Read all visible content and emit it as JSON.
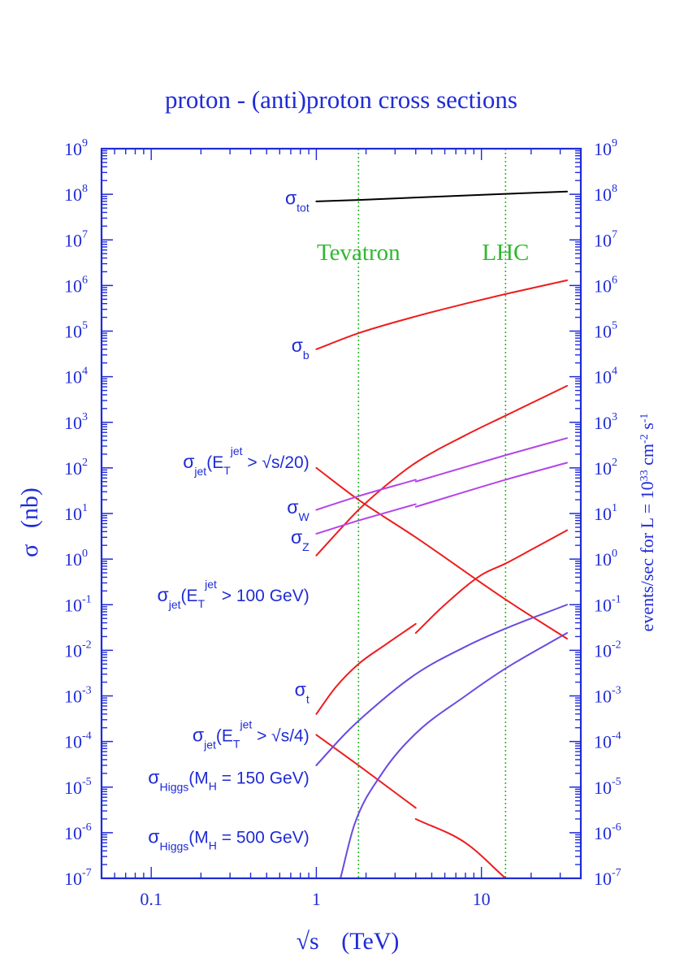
{
  "chart_data": {
    "type": "line",
    "title": "proton - (anti)proton cross sections",
    "xlabel": {
      "main": "√s",
      "unit": "(TeV)"
    },
    "ylabel": {
      "sigma": "σ",
      "unit": "(nb)"
    },
    "y2label": "events/sec  for  L = 10",
    "y2label_exp1": "33",
    "y2label_cm": " cm",
    "y2label_exp2": "-2",
    "y2label_s": " s",
    "y2label_exp3": "-1",
    "x_scale": "log",
    "y_scale": "log",
    "xlim": [
      0.05,
      40
    ],
    "ylim": [
      1e-07,
      1000000000.0
    ],
    "x_ticks": [
      {
        "value": 0.1,
        "label": "0.1"
      },
      {
        "value": 1,
        "label": "1"
      },
      {
        "value": 10,
        "label": "10"
      }
    ],
    "y_ticks": [
      {
        "exp": -7,
        "base": "10",
        "sup": "-7"
      },
      {
        "exp": -6,
        "base": "10",
        "sup": "-6"
      },
      {
        "exp": -5,
        "base": "10",
        "sup": "-5"
      },
      {
        "exp": -4,
        "base": "10",
        "sup": "-4"
      },
      {
        "exp": -3,
        "base": "10",
        "sup": "-3"
      },
      {
        "exp": -2,
        "base": "10",
        "sup": "-2"
      },
      {
        "exp": -1,
        "base": "10",
        "sup": "-1"
      },
      {
        "exp": 0,
        "base": "10",
        "sup": "0"
      },
      {
        "exp": 1,
        "base": "10",
        "sup": "1"
      },
      {
        "exp": 2,
        "base": "10",
        "sup": "2"
      },
      {
        "exp": 3,
        "base": "10",
        "sup": "3"
      },
      {
        "exp": 4,
        "base": "10",
        "sup": "4"
      },
      {
        "exp": 5,
        "base": "10",
        "sup": "5"
      },
      {
        "exp": 6,
        "base": "10",
        "sup": "6"
      },
      {
        "exp": 7,
        "base": "10",
        "sup": "7"
      },
      {
        "exp": 8,
        "base": "10",
        "sup": "8"
      },
      {
        "exp": 9,
        "base": "10",
        "sup": "9"
      }
    ],
    "vlines": [
      {
        "x": 1.8,
        "label": "Tevatron",
        "color": "#2fb82f"
      },
      {
        "x": 14,
        "label": "LHC",
        "color": "#2fb82f"
      }
    ],
    "colors": {
      "axis": "#1f2bd6",
      "text": "#1f2bd6",
      "tot": "#000000",
      "red": "#ee1c1c",
      "purple": "#b544e8",
      "violet": "#6a4ae0"
    },
    "series": [
      {
        "id": "sigma-tot",
        "color": "#000000",
        "x": [
          1,
          1.8,
          4,
          14,
          33
        ],
        "y": [
          70000000.0,
          75000000.0,
          85000000.0,
          102000000.0,
          115000000.0
        ]
      },
      {
        "id": "sigma-b",
        "color": "#ee1c1c",
        "x": [
          1,
          1.8,
          4,
          8,
          14,
          33
        ],
        "y": [
          40000.0,
          90000.0,
          210000.0,
          400000.0,
          650000.0,
          1300000.0
        ]
      },
      {
        "id": "sigma-jet-100gev",
        "color": "#ee1c1c",
        "x": [
          1,
          1.5,
          1.8,
          2.5,
          4,
          8,
          14,
          33
        ],
        "y": [
          1.2,
          6,
          12,
          35,
          130,
          520,
          1400,
          6300
        ]
      },
      {
        "id": "sigma-jet-s20",
        "color": "#ee1c1c",
        "x": [
          1,
          1.8,
          4,
          14,
          33
        ],
        "y": [
          100,
          20,
          3,
          0.13,
          0.018
        ]
      },
      {
        "id": "sigma-w-low",
        "color": "#b544e8",
        "x": [
          1,
          1.8,
          4
        ],
        "y": [
          12,
          24,
          55
        ]
      },
      {
        "id": "sigma-w-high",
        "color": "#b544e8",
        "x": [
          4,
          14,
          33
        ],
        "y": [
          50,
          190,
          450
        ]
      },
      {
        "id": "sigma-z-low",
        "color": "#b544e8",
        "x": [
          1,
          1.8,
          4
        ],
        "y": [
          3.6,
          7,
          16
        ]
      },
      {
        "id": "sigma-z-high",
        "color": "#b544e8",
        "x": [
          4,
          14,
          33
        ],
        "y": [
          14,
          55,
          130
        ]
      },
      {
        "id": "sigma-t-low",
        "color": "#ee1c1c",
        "x": [
          1,
          1.3,
          1.8,
          2.6,
          4
        ],
        "y": [
          0.0004,
          0.0015,
          0.005,
          0.013,
          0.038
        ]
      },
      {
        "id": "sigma-t-high",
        "color": "#ee1c1c",
        "x": [
          4,
          6,
          10,
          14,
          20,
          33
        ],
        "y": [
          0.024,
          0.1,
          0.45,
          0.8,
          1.6,
          4.3
        ]
      },
      {
        "id": "sigma-jet-s4-low",
        "color": "#ee1c1c",
        "x": [
          1,
          1.8,
          4
        ],
        "y": [
          0.00014,
          3e-05,
          3.5e-06
        ]
      },
      {
        "id": "sigma-jet-s4-high",
        "color": "#ee1c1c",
        "x": [
          4,
          8,
          14
        ],
        "y": [
          2e-06,
          6e-07,
          1e-07
        ]
      },
      {
        "id": "sigma-higgs-150",
        "color": "#6a4ae0",
        "x": [
          1,
          1.5,
          2,
          4,
          8,
          14,
          33
        ],
        "y": [
          3e-05,
          0.00015,
          0.0004,
          0.003,
          0.012,
          0.03,
          0.1
        ]
      },
      {
        "id": "sigma-higgs-500",
        "color": "#6a4ae0",
        "x": [
          1.4,
          1.7,
          2.5,
          4,
          8,
          14,
          33
        ],
        "y": [
          1e-07,
          1.5e-06,
          2e-05,
          0.00015,
          0.001,
          0.004,
          0.024
        ]
      }
    ],
    "labels": [
      {
        "id": "label-sigma-tot",
        "main": "σ",
        "sub": "tot",
        "x": 0.97,
        "y": 60000000.0
      },
      {
        "id": "label-sigma-b",
        "main": "σ",
        "sub": "b",
        "x": 0.97,
        "y": 35000.0
      },
      {
        "id": "label-sigma-jet-s20",
        "main": "σ",
        "sub": "jet",
        "rest": "(E",
        "sub2": "T",
        "sup2": "jet",
        "tail": " > √s/20)",
        "x": 0.97,
        "y": 100
      },
      {
        "id": "label-sigma-w",
        "main": "σ",
        "sub": "W",
        "x": 0.97,
        "y": 10
      },
      {
        "id": "label-sigma-z",
        "main": "σ",
        "sub": "Z",
        "x": 0.97,
        "y": 2.2
      },
      {
        "id": "label-sigma-jet-100",
        "main": "σ",
        "sub": "jet",
        "rest": "(E",
        "sub2": "T",
        "sup2": "jet",
        "tail": " > 100 GeV)",
        "x": 0.97,
        "y": 0.12
      },
      {
        "id": "label-sigma-t",
        "main": "σ",
        "sub": "t",
        "x": 0.97,
        "y": 0.001
      },
      {
        "id": "label-sigma-jet-s4",
        "main": "σ",
        "sub": "jet",
        "rest": "(E",
        "sub2": "T",
        "sup2": "jet",
        "tail": " > √s/4)",
        "x": 0.97,
        "y": 0.0001
      },
      {
        "id": "label-sigma-higgs-150",
        "main": "σ",
        "sub": "Higgs",
        "rest": "(M",
        "sub2": "H",
        "tail": " = 150 GeV)",
        "x": 0.97,
        "y": 1.2e-05
      },
      {
        "id": "label-sigma-higgs-500",
        "main": "σ",
        "sub": "Higgs",
        "rest": "(M",
        "sub2": "H",
        "tail": " = 500 GeV)",
        "x": 0.97,
        "y": 6e-07
      }
    ]
  }
}
